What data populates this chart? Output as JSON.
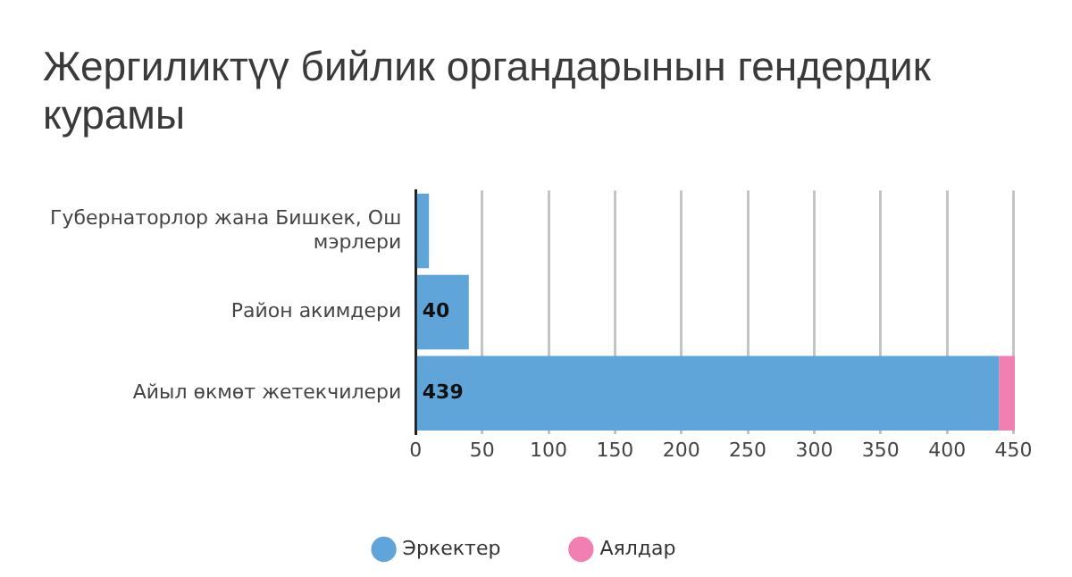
{
  "chart_data": {
    "type": "bar",
    "orientation": "horizontal",
    "stacked": true,
    "title": "Жергиликтүү бийлик органдарынын гендердик курамы",
    "categories": [
      "Губернаторлор жана Бишкек, Ош мэрлери",
      "Район акимдери",
      "Айыл өкмөт жетекчилери"
    ],
    "series": [
      {
        "name": "Эркектер",
        "color": "#5fa5da",
        "values": [
          10,
          40,
          439
        ],
        "value_labels": [
          null,
          "40",
          "439"
        ]
      },
      {
        "name": "Аялдар",
        "color": "#f27fb2",
        "values": [
          0,
          0,
          12
        ]
      }
    ],
    "xlim": [
      0,
      451
    ],
    "xticks": [
      0,
      50,
      100,
      150,
      200,
      250,
      300,
      350,
      400,
      450
    ],
    "grid": "x",
    "legend": "bottom"
  }
}
